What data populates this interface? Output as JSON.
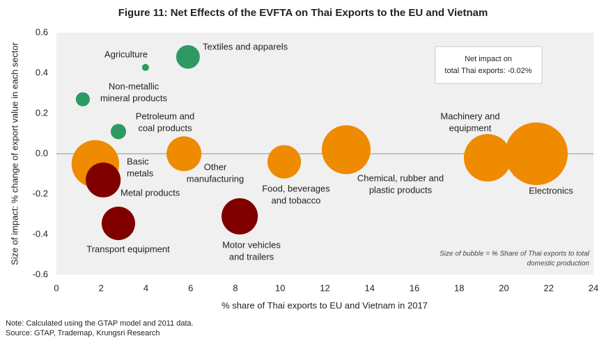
{
  "chart_data": {
    "type": "bubble",
    "title": "Figure 11: Net Effects of the EVFTA on Thai Exports to the EU and Vietnam",
    "x_label": "% share of Thai exports to EU and Vietnam in 2017",
    "y_label": "Size of impact: % change of export value in each sector",
    "xlim": [
      0,
      24
    ],
    "xticks": [
      0,
      2,
      4,
      6,
      8,
      10,
      12,
      14,
      16,
      18,
      20,
      22,
      24
    ],
    "ylim": [
      -0.6,
      0.6
    ],
    "yticks": [
      -0.6,
      -0.4,
      -0.2,
      {
        "value": 0,
        "label": "0.0"
      },
      0.2,
      0.4,
      0.6
    ],
    "points": [
      {
        "label": [
          "Agriculture"
        ],
        "color": "#2e9a63",
        "x": 3.98,
        "y": 0.428,
        "size": 0.5
      },
      {
        "label": [
          "Textiles and apparels"
        ],
        "color": "#2e9a63",
        "x": 5.88,
        "y": 0.48,
        "size": 5.7
      },
      {
        "label": [
          "Non-metallic",
          "mineral products"
        ],
        "color": "#2e9a63",
        "x": 1.18,
        "y": 0.27,
        "size": 2
      },
      {
        "label": [
          "Petroleum and",
          "coal products"
        ],
        "color": "#2e9a63",
        "x": 2.77,
        "y": 0.11,
        "size": 2.4
      },
      {
        "label": [
          "Basic",
          "metals"
        ],
        "color": "#ee8b00",
        "x": 1.74,
        "y": -0.05,
        "size": 23
      },
      {
        "label": [
          "Metal products"
        ],
        "color": "#800000",
        "x": 2.09,
        "y": -0.13,
        "size": 12.4
      },
      {
        "label": [
          "Other",
          "manufacturing"
        ],
        "color": "#ee8b00",
        "x": 5.7,
        "y": 0.0,
        "size": 12.4
      },
      {
        "label": [
          "Transport equipment"
        ],
        "color": "#800000",
        "x": 2.77,
        "y": -0.345,
        "size": 11.4
      },
      {
        "label": [
          "Motor vehicles",
          "and trailers"
        ],
        "color": "#800000",
        "x": 8.19,
        "y": -0.31,
        "size": 13.4
      },
      {
        "label": [
          "Food, beverages",
          "and tobacco"
        ],
        "color": "#ee8b00",
        "x": 10.18,
        "y": -0.04,
        "size": 11.4
      },
      {
        "label": [
          "Chemical, rubber and",
          "plastic products"
        ],
        "color": "#ee8b00",
        "x": 12.95,
        "y": 0.02,
        "size": 24.3
      },
      {
        "label": [
          "Machinery and",
          "equipment"
        ],
        "color": "#ee8b00",
        "x": 19.27,
        "y": -0.02,
        "size": 23
      },
      {
        "label": [
          "Electronics"
        ],
        "color": "#ee8b00",
        "x": 21.45,
        "y": 0.0,
        "size": 40
      }
    ],
    "impact_box": [
      "Net impact on",
      "total Thai exports: -0.02%"
    ],
    "size_note": [
      "Size of bubble = % Share of Thai exports to total",
      "domestic production"
    ],
    "notes": [
      "Note: Calculated using the GTAP model and 2011 data.",
      "Source: GTAP, Trademap, Krungsri Research"
    ]
  }
}
